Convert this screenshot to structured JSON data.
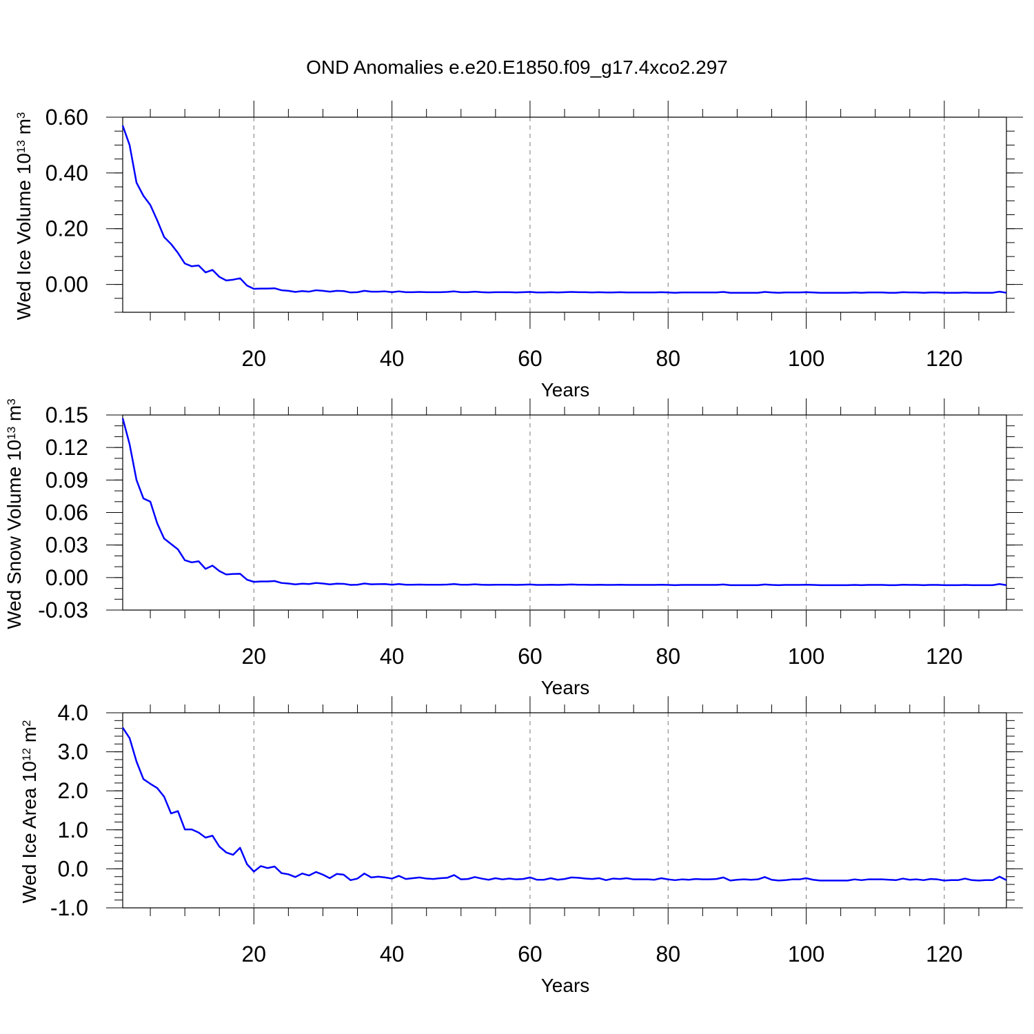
{
  "title": "OND Anomalies e.e20.E1850.f09_g17.4xco2.297",
  "colors": {
    "line": "#0000ff",
    "axis": "#000000",
    "grid": "#777777"
  },
  "chart_data": [
    {
      "type": "line",
      "title": "OND Anomalies e.e20.E1850.f09_g17.4xco2.297",
      "xlabel": "Years",
      "ylabel": {
        "prefix": "Wed Ice Volume 10",
        "exp": "13",
        "unit": " m",
        "unit_exp": "3"
      },
      "xlim": [
        1,
        129
      ],
      "ylim": [
        -0.1,
        0.6
      ],
      "xticks": [
        20,
        40,
        60,
        80,
        100,
        120
      ],
      "xtick_labels": [
        "20",
        "40",
        "60",
        "80",
        "100",
        "120"
      ],
      "yticks": [
        0.0,
        0.2,
        0.4,
        0.6
      ],
      "ytick_labels": [
        "0.00",
        "0.20",
        "0.40",
        "0.60"
      ],
      "grid": "vertical dashed",
      "series": [
        {
          "values": [
            0.57,
            0.5,
            0.365,
            0.318,
            0.285,
            0.23,
            0.17,
            0.145,
            0.113,
            0.075,
            0.065,
            0.068,
            0.043,
            0.052,
            0.027,
            0.014,
            0.017,
            0.022,
            -0.004,
            -0.016,
            -0.015,
            -0.015,
            -0.014,
            -0.021,
            -0.023,
            -0.027,
            -0.024,
            -0.026,
            -0.021,
            -0.023,
            -0.026,
            -0.023,
            -0.024,
            -0.029,
            -0.028,
            -0.023,
            -0.026,
            -0.026,
            -0.025,
            -0.028,
            -0.025,
            -0.028,
            -0.028,
            -0.027,
            -0.028,
            -0.028,
            -0.028,
            -0.027,
            -0.025,
            -0.028,
            -0.028,
            -0.026,
            -0.028,
            -0.029,
            -0.028,
            -0.028,
            -0.028,
            -0.029,
            -0.028,
            -0.027,
            -0.029,
            -0.029,
            -0.028,
            -0.029,
            -0.028,
            -0.027,
            -0.028,
            -0.028,
            -0.029,
            -0.028,
            -0.029,
            -0.029,
            -0.028,
            -0.029,
            -0.029,
            -0.029,
            -0.029,
            -0.029,
            -0.028,
            -0.029,
            -0.03,
            -0.029,
            -0.029,
            -0.029,
            -0.029,
            -0.029,
            -0.029,
            -0.027,
            -0.03,
            -0.03,
            -0.03,
            -0.03,
            -0.03,
            -0.027,
            -0.029,
            -0.03,
            -0.029,
            -0.029,
            -0.029,
            -0.028,
            -0.029,
            -0.03,
            -0.03,
            -0.03,
            -0.03,
            -0.03,
            -0.029,
            -0.03,
            -0.029,
            -0.029,
            -0.029,
            -0.03,
            -0.03,
            -0.028,
            -0.029,
            -0.029,
            -0.03,
            -0.029,
            -0.029,
            -0.03,
            -0.03,
            -0.03,
            -0.029,
            -0.03,
            -0.03,
            -0.03,
            -0.03,
            -0.026,
            -0.03
          ]
        }
      ]
    },
    {
      "type": "line",
      "xlabel": "Years",
      "ylabel": {
        "prefix": "Wed Snow Volume 10",
        "exp": "13",
        "unit": " m",
        "unit_exp": "3"
      },
      "xlim": [
        1,
        129
      ],
      "ylim": [
        -0.03,
        0.15
      ],
      "xticks": [
        20,
        40,
        60,
        80,
        100,
        120
      ],
      "xtick_labels": [
        "20",
        "40",
        "60",
        "80",
        "100",
        "120"
      ],
      "yticks": [
        -0.03,
        0.0,
        0.03,
        0.06,
        0.09,
        0.12,
        0.15
      ],
      "ytick_labels": [
        "-0.03",
        "0.00",
        "0.03",
        "0.06",
        "0.09",
        "0.12",
        "0.15"
      ],
      "grid": "vertical dashed",
      "series": [
        {
          "values": [
            0.147,
            0.123,
            0.09,
            0.073,
            0.07,
            0.05,
            0.036,
            0.031,
            0.026,
            0.016,
            0.014,
            0.015,
            0.008,
            0.011,
            0.006,
            0.0028,
            0.0033,
            0.0035,
            -0.002,
            -0.004,
            -0.0036,
            -0.0036,
            -0.0032,
            -0.005,
            -0.0055,
            -0.0063,
            -0.0057,
            -0.006,
            -0.005,
            -0.0055,
            -0.0063,
            -0.0057,
            -0.0058,
            -0.0068,
            -0.0066,
            -0.0055,
            -0.0062,
            -0.0061,
            -0.006,
            -0.0066,
            -0.006,
            -0.0066,
            -0.0066,
            -0.0065,
            -0.0066,
            -0.0066,
            -0.0066,
            -0.0065,
            -0.006,
            -0.0066,
            -0.0066,
            -0.0062,
            -0.0066,
            -0.0068,
            -0.0066,
            -0.0066,
            -0.0066,
            -0.0068,
            -0.0066,
            -0.0064,
            -0.0068,
            -0.0068,
            -0.0066,
            -0.0068,
            -0.0066,
            -0.0064,
            -0.0066,
            -0.0066,
            -0.0068,
            -0.0066,
            -0.0068,
            -0.0068,
            -0.0066,
            -0.0068,
            -0.0068,
            -0.0068,
            -0.0068,
            -0.0068,
            -0.0066,
            -0.0068,
            -0.007,
            -0.0068,
            -0.0068,
            -0.0068,
            -0.0068,
            -0.0068,
            -0.0068,
            -0.0064,
            -0.007,
            -0.007,
            -0.007,
            -0.007,
            -0.007,
            -0.0064,
            -0.0068,
            -0.007,
            -0.0068,
            -0.0068,
            -0.0068,
            -0.0066,
            -0.0068,
            -0.007,
            -0.007,
            -0.007,
            -0.007,
            -0.007,
            -0.0068,
            -0.007,
            -0.0068,
            -0.0068,
            -0.0068,
            -0.007,
            -0.007,
            -0.0066,
            -0.0068,
            -0.0068,
            -0.007,
            -0.0068,
            -0.0068,
            -0.007,
            -0.007,
            -0.007,
            -0.0068,
            -0.007,
            -0.007,
            -0.007,
            -0.007,
            -0.006,
            -0.007
          ]
        }
      ]
    },
    {
      "type": "line",
      "xlabel": "Years",
      "ylabel": {
        "prefix": "Wed Ice Area 10",
        "exp": "12",
        "unit": " m",
        "unit_exp": "2"
      },
      "xlim": [
        1,
        129
      ],
      "ylim": [
        -1.0,
        4.0
      ],
      "xticks": [
        20,
        40,
        60,
        80,
        100,
        120
      ],
      "xtick_labels": [
        "20",
        "40",
        "60",
        "80",
        "100",
        "120"
      ],
      "yticks": [
        -1.0,
        0.0,
        1.0,
        2.0,
        3.0,
        4.0
      ],
      "ytick_labels": [
        "-1.0",
        "0.0",
        "1.0",
        "2.0",
        "3.0",
        "4.0"
      ],
      "grid": "vertical dashed",
      "series": [
        {
          "values": [
            3.62,
            3.35,
            2.75,
            2.3,
            2.18,
            2.07,
            1.85,
            1.42,
            1.48,
            1.01,
            1.01,
            0.93,
            0.8,
            0.85,
            0.57,
            0.42,
            0.36,
            0.54,
            0.12,
            -0.07,
            0.07,
            0.02,
            0.06,
            -0.11,
            -0.14,
            -0.21,
            -0.12,
            -0.17,
            -0.08,
            -0.15,
            -0.24,
            -0.13,
            -0.15,
            -0.29,
            -0.25,
            -0.12,
            -0.22,
            -0.2,
            -0.22,
            -0.25,
            -0.18,
            -0.26,
            -0.24,
            -0.22,
            -0.25,
            -0.26,
            -0.24,
            -0.23,
            -0.16,
            -0.27,
            -0.26,
            -0.21,
            -0.25,
            -0.28,
            -0.24,
            -0.27,
            -0.25,
            -0.27,
            -0.26,
            -0.22,
            -0.28,
            -0.28,
            -0.24,
            -0.28,
            -0.26,
            -0.22,
            -0.23,
            -0.25,
            -0.26,
            -0.24,
            -0.29,
            -0.25,
            -0.26,
            -0.24,
            -0.27,
            -0.27,
            -0.27,
            -0.28,
            -0.24,
            -0.27,
            -0.29,
            -0.27,
            -0.28,
            -0.26,
            -0.27,
            -0.27,
            -0.26,
            -0.22,
            -0.3,
            -0.28,
            -0.27,
            -0.28,
            -0.27,
            -0.21,
            -0.28,
            -0.3,
            -0.29,
            -0.27,
            -0.27,
            -0.24,
            -0.28,
            -0.3,
            -0.3,
            -0.3,
            -0.3,
            -0.3,
            -0.27,
            -0.29,
            -0.27,
            -0.27,
            -0.27,
            -0.28,
            -0.29,
            -0.25,
            -0.28,
            -0.27,
            -0.29,
            -0.26,
            -0.27,
            -0.3,
            -0.29,
            -0.29,
            -0.25,
            -0.29,
            -0.3,
            -0.29,
            -0.29,
            -0.2,
            -0.29
          ]
        }
      ]
    }
  ]
}
